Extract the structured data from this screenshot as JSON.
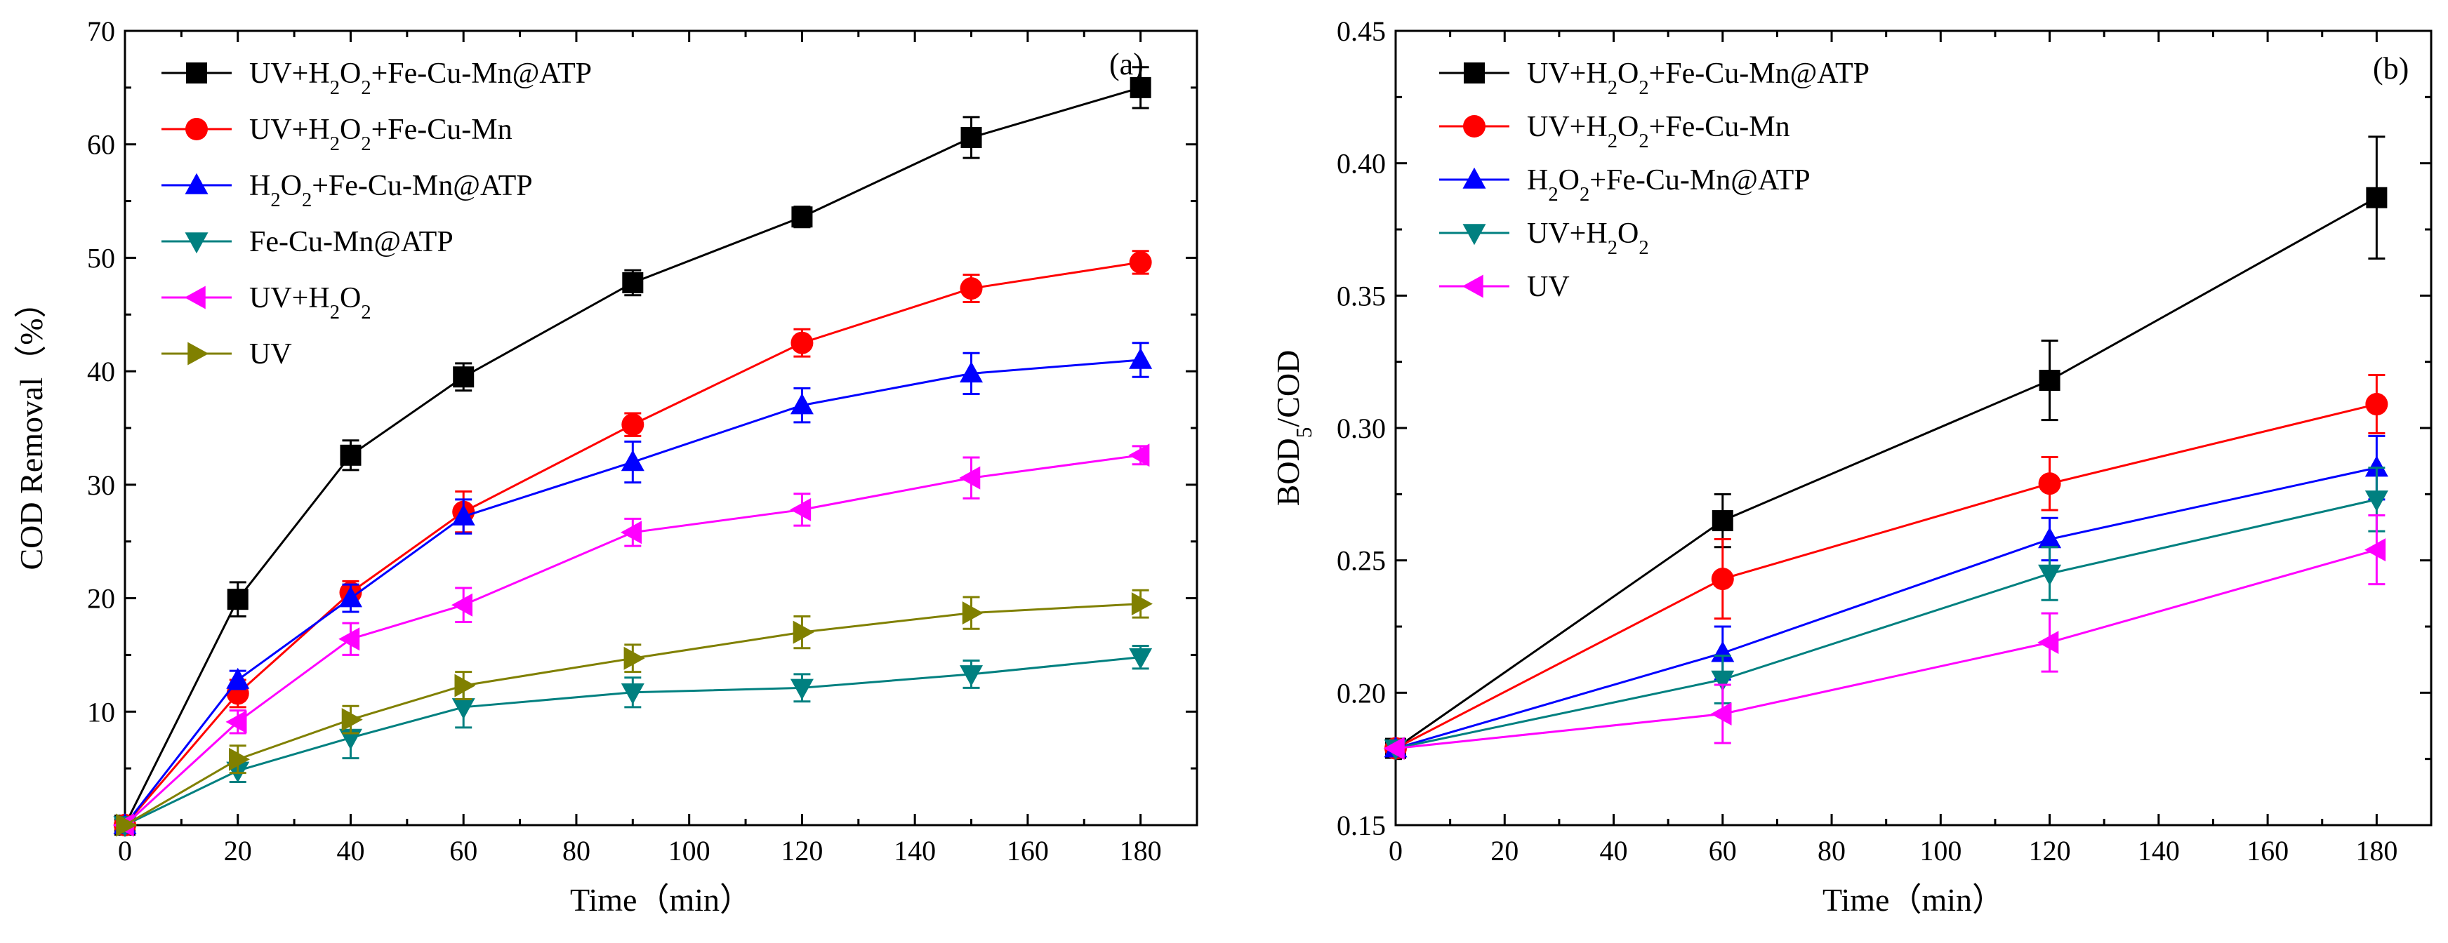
{
  "chart_data": [
    {
      "type": "line",
      "panel_label": "(a)",
      "xlabel": "Time（min）",
      "ylabel": "COD Removal（%）",
      "xlim": [
        0,
        190
      ],
      "ylim": [
        0,
        70
      ],
      "xticks": [
        0,
        20,
        40,
        60,
        80,
        100,
        120,
        140,
        160,
        180
      ],
      "yticks": [
        10,
        20,
        30,
        40,
        50,
        60,
        70
      ],
      "legend_position": "top-left",
      "grid": false,
      "series": [
        {
          "name": "UV+H2O2+Fe-Cu-Mn@ATP",
          "legend": [
            "UV+H",
            "2",
            "O",
            "2",
            "+Fe-Cu-Mn@ATP"
          ],
          "color": "#000000",
          "marker": "square",
          "x": [
            0,
            20,
            40,
            60,
            90,
            120,
            150,
            180
          ],
          "y": [
            0,
            19.9,
            32.6,
            39.5,
            47.8,
            53.6,
            60.6,
            65.0
          ],
          "err": [
            0,
            1.5,
            1.3,
            1.2,
            1.1,
            0.9,
            1.8,
            1.8
          ]
        },
        {
          "name": "UV+H2O2+Fe-Cu-Mn",
          "legend": [
            "UV+H",
            "2",
            "O",
            "2",
            "+Fe-Cu-Mn"
          ],
          "color": "#ff0000",
          "marker": "circle",
          "x": [
            0,
            20,
            40,
            60,
            90,
            120,
            150,
            180
          ],
          "y": [
            0,
            11.6,
            20.5,
            27.6,
            35.3,
            42.5,
            47.3,
            49.6
          ],
          "err": [
            0,
            1.2,
            1.0,
            1.8,
            1.0,
            1.2,
            1.2,
            1.0
          ]
        },
        {
          "name": "H2O2+Fe-Cu-Mn@ATP",
          "legend": [
            "H",
            "2",
            "O",
            "2",
            "+Fe-Cu-Mn@ATP"
          ],
          "color": "#0000ff",
          "marker": "triangle-up",
          "x": [
            0,
            20,
            40,
            60,
            90,
            120,
            150,
            180
          ],
          "y": [
            0,
            12.8,
            20.0,
            27.2,
            32.0,
            37.0,
            39.8,
            41.0
          ],
          "err": [
            0,
            0.8,
            1.2,
            1.5,
            1.8,
            1.5,
            1.8,
            1.5
          ]
        },
        {
          "name": "Fe-Cu-Mn@ATP",
          "legend": [
            "Fe-Cu-Mn@ATP"
          ],
          "color": "#008080",
          "marker": "triangle-down",
          "x": [
            0,
            20,
            40,
            60,
            90,
            120,
            150,
            180
          ],
          "y": [
            0,
            4.8,
            7.7,
            10.4,
            11.7,
            12.1,
            13.3,
            14.8
          ],
          "err": [
            0,
            1.0,
            1.8,
            1.8,
            1.3,
            1.2,
            1.2,
            1.0
          ]
        },
        {
          "name": "UV+H2O2",
          "legend": [
            "UV+H",
            "2",
            "O",
            "2"
          ],
          "color": "#ff00ff",
          "marker": "triangle-left",
          "x": [
            0,
            20,
            40,
            60,
            90,
            120,
            150,
            180
          ],
          "y": [
            0,
            9.1,
            16.4,
            19.4,
            25.8,
            27.8,
            30.6,
            32.6
          ],
          "err": [
            0,
            1.0,
            1.4,
            1.5,
            1.2,
            1.4,
            1.8,
            0.8
          ]
        },
        {
          "name": "UV",
          "legend": [
            "UV"
          ],
          "color": "#808000",
          "marker": "triangle-right",
          "x": [
            0,
            20,
            40,
            60,
            90,
            120,
            150,
            180
          ],
          "y": [
            0,
            5.8,
            9.3,
            12.3,
            14.7,
            17.0,
            18.7,
            19.5
          ],
          "err": [
            0,
            1.2,
            1.2,
            1.2,
            1.2,
            1.4,
            1.4,
            1.2
          ]
        }
      ]
    },
    {
      "type": "line",
      "panel_label": "(b)",
      "xlabel": "Time（min）",
      "ylabel": "BOD5/COD",
      "ylabel_parts": [
        "BOD",
        "5",
        "/COD"
      ],
      "xlim": [
        0,
        190
      ],
      "ylim": [
        0.15,
        0.45
      ],
      "xticks": [
        0,
        20,
        40,
        60,
        80,
        100,
        120,
        140,
        160,
        180
      ],
      "yticks": [
        0.15,
        0.2,
        0.25,
        0.3,
        0.35,
        0.4,
        0.45
      ],
      "ytick_labels": [
        "0.15",
        "0.20",
        "0.25",
        "0.30",
        "0.35",
        "0.40",
        "0.45"
      ],
      "legend_position": "top-left",
      "grid": false,
      "series": [
        {
          "name": "UV+H2O2+Fe-Cu-Mn@ATP",
          "legend": [
            "UV+H",
            "2",
            "O",
            "2",
            "+Fe-Cu-Mn@ATP"
          ],
          "color": "#000000",
          "marker": "square",
          "x": [
            0,
            60,
            120,
            180
          ],
          "y": [
            0.179,
            0.265,
            0.318,
            0.387
          ],
          "err": [
            0,
            0.01,
            0.015,
            0.023
          ]
        },
        {
          "name": "UV+H2O2+Fe-Cu-Mn",
          "legend": [
            "UV+H",
            "2",
            "O",
            "2",
            "+Fe-Cu-Mn"
          ],
          "color": "#ff0000",
          "marker": "circle",
          "x": [
            0,
            60,
            120,
            180
          ],
          "y": [
            0.179,
            0.243,
            0.279,
            0.309
          ],
          "err": [
            0,
            0.015,
            0.01,
            0.011
          ]
        },
        {
          "name": "H2O2+Fe-Cu-Mn@ATP",
          "legend": [
            "H",
            "2",
            "O",
            "2",
            "+Fe-Cu-Mn@ATP"
          ],
          "color": "#0000ff",
          "marker": "triangle-up",
          "x": [
            0,
            60,
            120,
            180
          ],
          "y": [
            0.179,
            0.215,
            0.258,
            0.285
          ],
          "err": [
            0,
            0.01,
            0.008,
            0.012
          ]
        },
        {
          "name": "UV+H2O2",
          "legend": [
            "UV+H",
            "2",
            "O",
            "2"
          ],
          "color": "#008080",
          "marker": "triangle-down",
          "x": [
            0,
            60,
            120,
            180
          ],
          "y": [
            0.179,
            0.205,
            0.245,
            0.273
          ],
          "err": [
            0,
            0.009,
            0.01,
            0.012
          ]
        },
        {
          "name": "UV",
          "legend": [
            "UV"
          ],
          "color": "#ff00ff",
          "marker": "triangle-left",
          "x": [
            0,
            60,
            120,
            180
          ],
          "y": [
            0.179,
            0.192,
            0.219,
            0.254
          ],
          "err": [
            0,
            0.011,
            0.011,
            0.013
          ]
        }
      ]
    }
  ]
}
